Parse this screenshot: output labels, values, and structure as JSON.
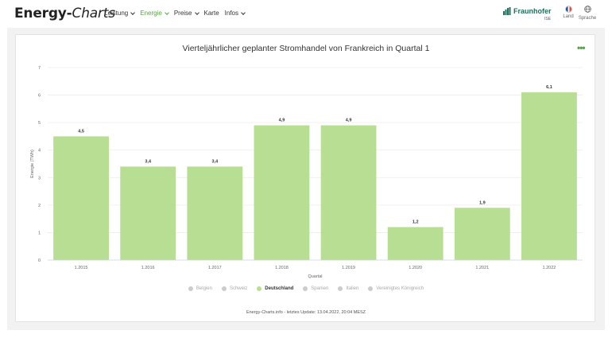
{
  "header": {
    "brand_main": "Energy-",
    "brand_ital": "Charts",
    "nav": [
      {
        "label": "Leistung",
        "active": false
      },
      {
        "label": "Energie",
        "active": true
      },
      {
        "label": "Preise",
        "active": false
      },
      {
        "label": "Karte",
        "active": false
      },
      {
        "label": "Infos",
        "active": false
      }
    ],
    "fraunhofer": "Fraunhofer",
    "fraunhofer_sub": "ISE",
    "land_label": "Land",
    "lang_label": "Sprache"
  },
  "colors": {
    "accent": "#59a447",
    "bar": "#b8de93",
    "fraunhofer": "#1f6f5a"
  },
  "chart_data": {
    "type": "bar",
    "title": "Vierteljährlicher geplanter Stromhandel von Frankreich in Quartal 1",
    "xlabel": "Quartal",
    "ylabel": "Energie (TWh)",
    "ylim": [
      0,
      7
    ],
    "yticks": [
      0,
      1,
      2,
      3,
      4,
      5,
      6,
      7
    ],
    "categories": [
      "1.2015",
      "1.2016",
      "1.2017",
      "1.2018",
      "1.2019",
      "1.2020",
      "1.2021",
      "1.2022"
    ],
    "series": [
      {
        "name": "Deutschland",
        "values": [
          4.5,
          3.4,
          3.4,
          4.9,
          4.9,
          1.2,
          1.9,
          6.1
        ],
        "labels": [
          "4,5",
          "3,4",
          "3,4",
          "4,9",
          "4,9",
          "1,2",
          "1,9",
          "6,1"
        ]
      }
    ],
    "legend": [
      "Belgien",
      "Schweiz",
      "Deutschland",
      "Spanien",
      "Italien",
      "Vereinigtes Königreich"
    ],
    "legend_active": "Deutschland",
    "legend_position": "bottom",
    "grid": true
  },
  "footer": {
    "note": "Energy-Charts.info - letztes Update: 13.04.2022, 20:04 MESZ"
  }
}
